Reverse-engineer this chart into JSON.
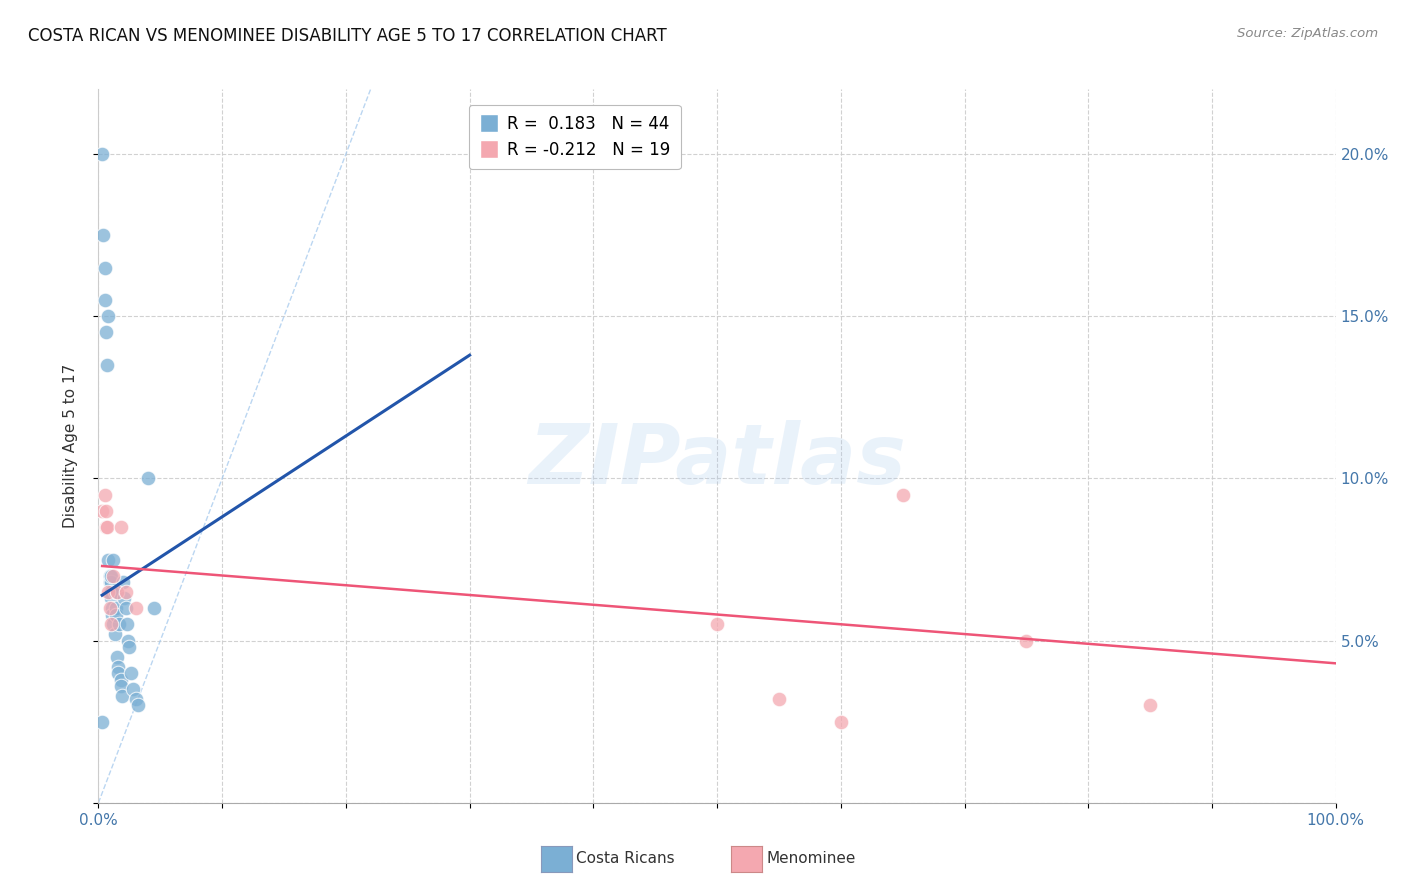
{
  "title": "COSTA RICAN VS MENOMINEE DISABILITY AGE 5 TO 17 CORRELATION CHART",
  "source": "Source: ZipAtlas.com",
  "ylabel": "Disability Age 5 to 17",
  "xlim": [
    0,
    1.0
  ],
  "ylim": [
    0,
    0.22
  ],
  "xticks": [
    0,
    0.1,
    0.2,
    0.3,
    0.4,
    0.5,
    0.6,
    0.7,
    0.8,
    0.9,
    1.0
  ],
  "xtick_labels": [
    "0.0%",
    "",
    "",
    "",
    "",
    "",
    "",
    "",
    "",
    "",
    "100.0%"
  ],
  "yticks_right": [
    0.05,
    0.1,
    0.15,
    0.2
  ],
  "ytick_labels_right": [
    "5.0%",
    "10.0%",
    "15.0%",
    "20.0%"
  ],
  "costa_rican_color": "#7BAFD4",
  "menominee_color": "#F4A8B0",
  "costa_rican_edge": "#5A8FBF",
  "menominee_edge": "#E07080",
  "blue_line_color": "#2255AA",
  "pink_line_color": "#EE5577",
  "diagonal_color": "#AACCEE",
  "costa_rican_label": "Costa Ricans",
  "menominee_label": "Menominee",
  "r_blue": "R =  0.183",
  "n_blue": "N = 44",
  "r_pink": "R = -0.212",
  "n_pink": "N = 19",
  "watermark": "ZIPatlas",
  "background_color": "#FFFFFF",
  "costa_rican_x": [
    0.003,
    0.004,
    0.005,
    0.005,
    0.006,
    0.007,
    0.008,
    0.008,
    0.009,
    0.009,
    0.009,
    0.01,
    0.01,
    0.01,
    0.01,
    0.011,
    0.011,
    0.012,
    0.012,
    0.013,
    0.013,
    0.014,
    0.014,
    0.015,
    0.015,
    0.016,
    0.016,
    0.017,
    0.018,
    0.018,
    0.019,
    0.02,
    0.021,
    0.022,
    0.023,
    0.024,
    0.025,
    0.026,
    0.028,
    0.03,
    0.032,
    0.04,
    0.045,
    0.003
  ],
  "costa_rican_y": [
    0.2,
    0.175,
    0.165,
    0.155,
    0.145,
    0.135,
    0.15,
    0.075,
    0.07,
    0.068,
    0.065,
    0.068,
    0.07,
    0.065,
    0.063,
    0.06,
    0.058,
    0.075,
    0.055,
    0.052,
    0.065,
    0.06,
    0.058,
    0.065,
    0.045,
    0.042,
    0.04,
    0.055,
    0.038,
    0.036,
    0.033,
    0.068,
    0.063,
    0.06,
    0.055,
    0.05,
    0.048,
    0.04,
    0.035,
    0.032,
    0.03,
    0.1,
    0.06,
    0.025
  ],
  "menominee_x": [
    0.003,
    0.005,
    0.006,
    0.006,
    0.007,
    0.008,
    0.009,
    0.01,
    0.012,
    0.015,
    0.018,
    0.022,
    0.03,
    0.5,
    0.55,
    0.65,
    0.75,
    0.85,
    0.6
  ],
  "menominee_y": [
    0.09,
    0.095,
    0.085,
    0.09,
    0.085,
    0.065,
    0.06,
    0.055,
    0.07,
    0.065,
    0.085,
    0.065,
    0.06,
    0.055,
    0.032,
    0.095,
    0.05,
    0.03,
    0.025
  ],
  "blue_line_x": [
    0.003,
    0.3
  ],
  "blue_line_y": [
    0.064,
    0.138
  ],
  "pink_line_x": [
    0.003,
    1.0
  ],
  "pink_line_y": [
    0.073,
    0.043
  ]
}
